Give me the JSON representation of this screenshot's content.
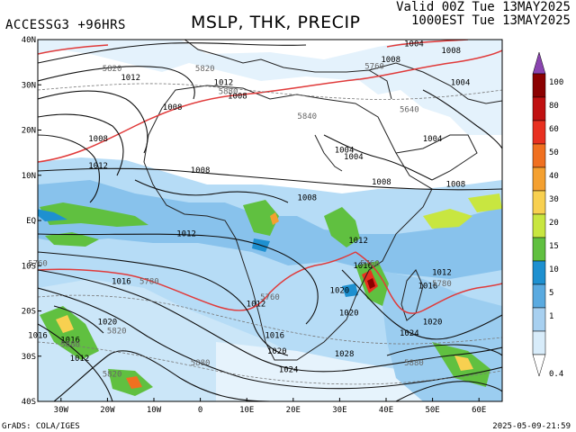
{
  "header": {
    "model_label": "ACCESSG3 +96HRS",
    "title": "MSLP, THK, PRECIP",
    "valid_line1": "Valid 00Z Tue 13MAY2025",
    "valid_line2": "1000EST Tue 13MAY2025"
  },
  "footer": {
    "credit": "GrADS: COLA/IGES",
    "timestamp": "2025-05-09-21:59"
  },
  "lat_labels": [
    "40N",
    "30N",
    "20N",
    "10N",
    "EQ",
    "10S",
    "20S",
    "30S",
    "40S"
  ],
  "lon_labels": [
    "30W",
    "20W",
    "10W",
    "0",
    "10E",
    "20E",
    "30E",
    "40E",
    "50E",
    "60E"
  ],
  "colorbar": {
    "labels": [
      "100",
      "80",
      "60",
      "50",
      "40",
      "30",
      "20",
      "15",
      "10",
      "5",
      "1",
      "0.4"
    ],
    "colors": [
      "#8b0000",
      "#c01010",
      "#e83020",
      "#f07020",
      "#f4a030",
      "#f8d050",
      "#c8e640",
      "#60c040",
      "#1e90d0",
      "#5aaae0",
      "#a8d0f0",
      "#d8ecfa"
    ],
    "top_color": "#8a44b0"
  },
  "pressure_labels": [
    {
      "text": "1004",
      "lon": 46,
      "lat": 38.5
    },
    {
      "text": "1008",
      "lon": 54,
      "lat": 37
    },
    {
      "text": "1008",
      "lon": 41,
      "lat": 35
    },
    {
      "text": "1004",
      "lon": 56,
      "lat": 30
    },
    {
      "text": "1012",
      "lon": -15,
      "lat": 31
    },
    {
      "text": "1012",
      "lon": 5,
      "lat": 30
    },
    {
      "text": "1008",
      "lon": 8,
      "lat": 27
    },
    {
      "text": "1008",
      "lon": -6,
      "lat": 24.5
    },
    {
      "text": "1008",
      "lon": -22,
      "lat": 17.5
    },
    {
      "text": "1012",
      "lon": -22,
      "lat": 11.5
    },
    {
      "text": "1008",
      "lon": 0,
      "lat": 10.5
    },
    {
      "text": "1004",
      "lon": 31,
      "lat": 15
    },
    {
      "text": "1004",
      "lon": 33,
      "lat": 13.5
    },
    {
      "text": "1004",
      "lon": 50,
      "lat": 17.5
    },
    {
      "text": "1008",
      "lon": 39,
      "lat": 8
    },
    {
      "text": "1008",
      "lon": 55,
      "lat": 7.5
    },
    {
      "text": "1008",
      "lon": 23,
      "lat": 4.5
    },
    {
      "text": "1012",
      "lon": -3,
      "lat": -3.5
    },
    {
      "text": "1012",
      "lon": 34,
      "lat": -5
    },
    {
      "text": "1016",
      "lon": 35,
      "lat": -10.5
    },
    {
      "text": "1012",
      "lon": 52,
      "lat": -12
    },
    {
      "text": "1016",
      "lon": -17,
      "lat": -14
    },
    {
      "text": "1016",
      "lon": 49,
      "lat": -15
    },
    {
      "text": "1020",
      "lon": 30,
      "lat": -16
    },
    {
      "text": "1012",
      "lon": 12,
      "lat": -19
    },
    {
      "text": "1020",
      "lon": -20,
      "lat": -23
    },
    {
      "text": "1020",
      "lon": 32,
      "lat": -21
    },
    {
      "text": "1020",
      "lon": 50,
      "lat": -23
    },
    {
      "text": "1024",
      "lon": 45,
      "lat": -25.5
    },
    {
      "text": "1016",
      "lon": 16,
      "lat": -26
    },
    {
      "text": "1016",
      "lon": -35,
      "lat": -26
    },
    {
      "text": "1016",
      "lon": -28,
      "lat": -27
    },
    {
      "text": "1020",
      "lon": 16.5,
      "lat": -29.5
    },
    {
      "text": "1028",
      "lon": 31,
      "lat": -30
    },
    {
      "text": "1012",
      "lon": -26,
      "lat": -31
    },
    {
      "text": "1024",
      "lon": 19,
      "lat": -33.5
    }
  ],
  "thickness_labels": [
    {
      "text": "5820",
      "lon": -19,
      "lat": 33
    },
    {
      "text": "5820",
      "lon": 1,
      "lat": 33
    },
    {
      "text": "5760",
      "lon": 37.5,
      "lat": 33.5
    },
    {
      "text": "5640",
      "lon": 45,
      "lat": 24
    },
    {
      "text": "5880",
      "lon": 6,
      "lat": 28
    },
    {
      "text": "5840",
      "lon": 23,
      "lat": 22.5
    },
    {
      "text": "5780",
      "lon": -11,
      "lat": -14
    },
    {
      "text": "5760",
      "lon": 15,
      "lat": -17.5
    },
    {
      "text": "5760",
      "lon": -35,
      "lat": -10
    },
    {
      "text": "5760",
      "lon": 36.5,
      "lat": -10
    },
    {
      "text": "5780",
      "lon": 52,
      "lat": -14.5
    },
    {
      "text": "5820",
      "lon": -18,
      "lat": -25
    },
    {
      "text": "5880",
      "lon": -28,
      "lat": -28
    },
    {
      "text": "5880",
      "lon": 0,
      "lat": -32
    },
    {
      "text": "5880",
      "lon": 46,
      "lat": -32
    },
    {
      "text": "5820",
      "lon": -19,
      "lat": -34.5
    }
  ]
}
